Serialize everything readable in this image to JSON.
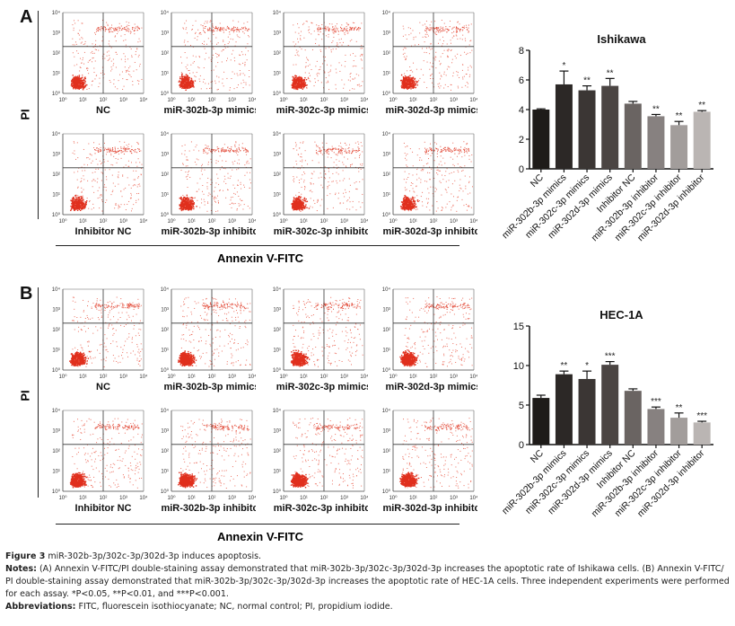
{
  "panels": [
    {
      "letter": "A",
      "y_axis_label": "PI",
      "x_axis_label": "Annexin V-FITC",
      "facs_plots": [
        "NC",
        "miR-302b-3p mimics",
        "miR-302c-3p mimics",
        "miR-302d-3p mimics",
        "Inhibitor NC",
        "miR-302b-3p inhibitor",
        "miR-302c-3p inhibitor",
        "miR-302d-3p inhibitor"
      ],
      "facs_ticks": [
        "10⁰",
        "10¹",
        "10²",
        "10³",
        "10⁴"
      ]
    },
    {
      "letter": "B",
      "y_axis_label": "PI",
      "x_axis_label": "Annexin V-FITC",
      "facs_plots": [
        "NC",
        "miR-302b-3p mimics",
        "miR-302c-3p mimics",
        "miR-302d-3p mimics",
        "Inhibitor NC",
        "miR-302b-3p inhibitor",
        "miR-302c-3p inhibitor",
        "miR-302d-3p inhibitor"
      ],
      "facs_ticks": [
        "10⁰",
        "10¹",
        "10²",
        "10³",
        "10⁴"
      ]
    }
  ],
  "chart_data": [
    {
      "type": "bar",
      "title": "Ishikawa",
      "categories": [
        "NC",
        "miR-302b-3p mimics",
        "miR-302c-3p mimics",
        "miR-302d-3p mimics",
        "Inhibitor NC",
        "miR-302b-3p inhibitor",
        "miR-302c-3p inhibitor",
        "miR-302d-3p inhibitor"
      ],
      "values": [
        4.0,
        5.7,
        5.3,
        5.6,
        4.4,
        3.55,
        2.95,
        3.85
      ],
      "errors": [
        0.05,
        0.9,
        0.3,
        0.5,
        0.15,
        0.12,
        0.25,
        0.08
      ],
      "significance": [
        "",
        "*",
        "**",
        "**",
        "",
        "**",
        "**",
        "**"
      ],
      "colors": [
        "#1e1b19",
        "#2c2826",
        "#3b3634",
        "#4b4543",
        "#6a6462",
        "#878180",
        "#a29d9b",
        "#bab5b3"
      ],
      "ylim": [
        0,
        8
      ],
      "yticks": [
        0,
        2,
        4,
        6,
        8
      ],
      "xlabel": "",
      "ylabel": ""
    },
    {
      "type": "bar",
      "title": "HEC-1A",
      "categories": [
        "NC",
        "miR-302b-3p mimics",
        "miR-302c-3p mimics",
        "miR-302d-3p mimics",
        "Inhibitor NC",
        "miR-302b-3p inhibitor",
        "miR-302c-3p inhibitor",
        "miR-302d-3p inhibitor"
      ],
      "values": [
        5.9,
        8.9,
        8.3,
        10.1,
        6.8,
        4.5,
        3.4,
        2.8
      ],
      "errors": [
        0.35,
        0.4,
        1.0,
        0.4,
        0.25,
        0.25,
        0.6,
        0.15
      ],
      "significance": [
        "",
        "**",
        "*",
        "***",
        "",
        "***",
        "**",
        "***"
      ],
      "colors": [
        "#1e1b19",
        "#2c2826",
        "#3b3634",
        "#4b4543",
        "#6a6462",
        "#878180",
        "#a29d9b",
        "#bab5b3"
      ],
      "ylim": [
        0,
        15
      ],
      "yticks": [
        0,
        5,
        10,
        15
      ],
      "xlabel": "",
      "ylabel": ""
    }
  ],
  "caption": {
    "figure_label": "Figure 3",
    "figure_title": "miR-302b-3p/302c-3p/302d-3p induces apoptosis.",
    "notes_label": "Notes:",
    "notes_text_1": "(A) Annexin V-FITC/PI double-staining assay demonstrated that miR-302b-3p/302c-3p/302d-3p increases the apoptotic rate of Ishikawa cells. (B) Annexin V-FITC/ PI double-staining assay demonstrated that miR-302b-3p/302c-3p/302d-3p increases the apoptotic rate of HEC-1A cells. Three independent experiments were performed for each assay. *P<0.05, **P<0.01, and ***P<0.001.",
    "abbrev_label": "Abbreviations:",
    "abbrev_text": "FITC, fluorescein isothiocyanate; NC, normal control; PI, propidium iodide."
  }
}
